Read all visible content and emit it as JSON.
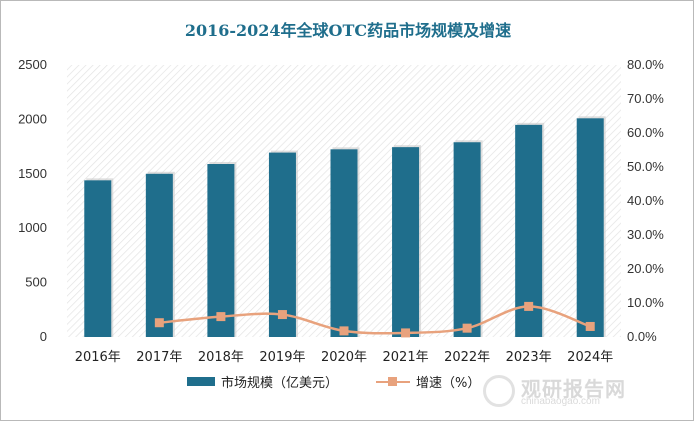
{
  "chart_data": {
    "type": "bar+line",
    "title": "2016-2024年全球OTC药品市场规模及增速",
    "categories": [
      "2016年",
      "2017年",
      "2018年",
      "2019年",
      "2020年",
      "2021年",
      "2022年",
      "2023年",
      "2024年"
    ],
    "series": [
      {
        "name": "市场规模（亿美元）",
        "type": "bar",
        "axis": "left",
        "color": "#1f6e8c",
        "values": [
          1440,
          1500,
          1590,
          1695,
          1725,
          1745,
          1790,
          1950,
          2010
        ]
      },
      {
        "name": "增速（%）",
        "type": "line",
        "axis": "right",
        "color": "#e8a27d",
        "values": [
          null,
          4.2,
          6.0,
          6.6,
          1.8,
          1.2,
          2.6,
          9.0,
          3.1
        ]
      }
    ],
    "y_left": {
      "min": 0,
      "max": 2500,
      "ticks": [
        0,
        500,
        1000,
        1500,
        2000,
        2500
      ]
    },
    "y_right": {
      "min": 0,
      "max": 80,
      "ticks": [
        "0.0%",
        "10.0%",
        "20.0%",
        "30.0%",
        "40.0%",
        "50.0%",
        "60.0%",
        "70.0%",
        "80.0%"
      ]
    },
    "legend_position": "bottom",
    "plot_background": "diagonal-hatch"
  },
  "watermark": {
    "cn": "观研报告网",
    "en": "chinabaogao.com"
  }
}
